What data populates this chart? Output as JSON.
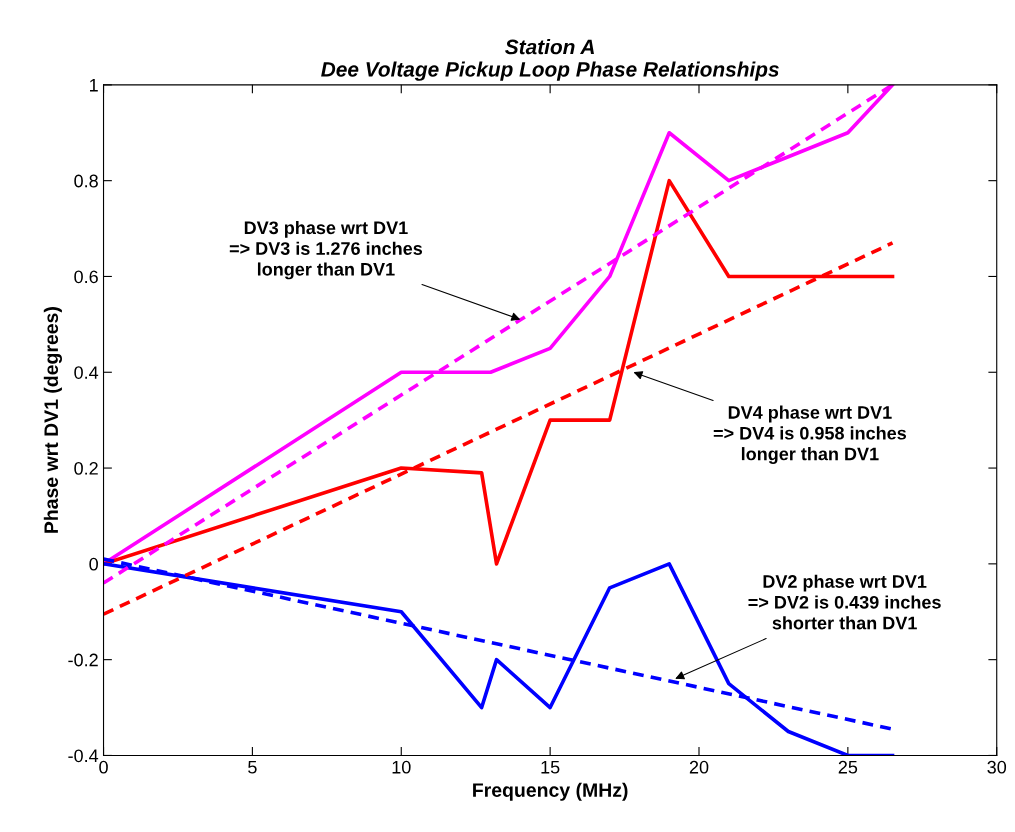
{
  "chart_data": {
    "type": "line",
    "title": "Station A\nDee Voltage Pickup Loop Phase Relationships",
    "xlabel": "Frequency (MHz)",
    "ylabel": "Phase wrt DV1 (degrees)",
    "xlim": [
      0,
      30
    ],
    "xticks": [
      0,
      5,
      10,
      15,
      20,
      25,
      30
    ],
    "ylim": [
      -0.4,
      1
    ],
    "yticks": [
      -0.4,
      -0.2,
      0,
      0.2,
      0.4,
      0.6,
      0.8,
      1
    ],
    "grid": false,
    "legend": false,
    "marker": "none",
    "series": [
      {
        "color": "#ff00ff",
        "line_style": "solid",
        "x": [
          0,
          10,
          13,
          15,
          17,
          19,
          21,
          23,
          25,
          26.5
        ],
        "values": [
          0,
          0.4,
          0.4,
          0.45,
          0.6,
          0.9,
          0.8,
          0.85,
          0.9,
          1.0
        ]
      },
      {
        "color": "#ff0000",
        "line_style": "solid",
        "x": [
          0,
          10,
          12.7,
          13.2,
          15,
          17,
          19,
          21,
          23,
          25,
          26.5
        ],
        "values": [
          0,
          0.2,
          0.19,
          0,
          0.3,
          0.3,
          0.8,
          0.6,
          0.6,
          0.6,
          0.6
        ]
      },
      {
        "color": "#0000ff",
        "line_style": "solid",
        "x": [
          0,
          10,
          12.7,
          13.2,
          15,
          17,
          19,
          21,
          23,
          25,
          26.5
        ],
        "values": [
          0,
          -0.1,
          -0.3,
          -0.2,
          -0.3,
          -0.05,
          0,
          -0.25,
          -0.35,
          -0.4,
          -0.4
        ]
      },
      {
        "color": "#ff00ff",
        "line_style": "dashed",
        "x": [
          0,
          26.5
        ],
        "values": [
          -0.04,
          1.0
        ]
      },
      {
        "color": "#ff0000",
        "line_style": "dashed",
        "x": [
          0,
          26.5
        ],
        "values": [
          -0.105,
          0.67
        ]
      },
      {
        "color": "#0000ff",
        "line_style": "dashed",
        "x": [
          0,
          26.5
        ],
        "values": [
          0.01,
          -0.345
        ]
      }
    ],
    "annotations": [
      {
        "text": "DV3 phase wrt DV1\n=> DV3 is 1.276 inches\nlonger than DV1",
        "x": 14.0,
        "y": 0.51
      },
      {
        "text": "DV4 phase wrt DV1\n=> DV4 is 0.958 inches\nlonger than DV1",
        "x": 17.8,
        "y": 0.4
      },
      {
        "text": "DV2 phase wrt DV1\n=> DV2 is 0.439 inches\nshorter than DV1",
        "x": 19.2,
        "y": -0.24
      }
    ]
  }
}
